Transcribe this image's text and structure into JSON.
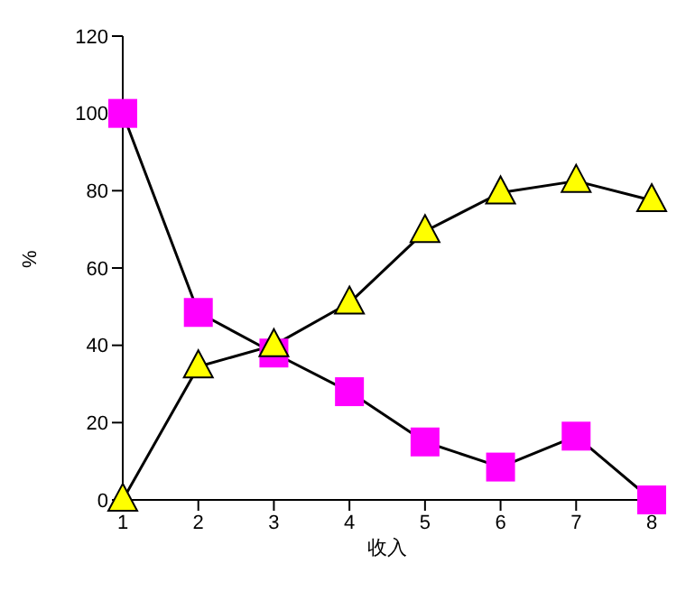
{
  "chart_data": {
    "type": "line",
    "xlabel": "收入",
    "ylabel": "%",
    "x": [
      1,
      2,
      3,
      4,
      5,
      6,
      7,
      8
    ],
    "series": [
      {
        "color": "#ff00ff",
        "marker": "square",
        "values": [
          100,
          48.5,
          38,
          28,
          15,
          8.5,
          16.5,
          0
        ]
      },
      {
        "color": "#ffff00",
        "marker": "triangle",
        "values": [
          0,
          34.5,
          40,
          51,
          69.5,
          79.5,
          82.5,
          77.5
        ]
      }
    ],
    "xlim": [
      1,
      8
    ],
    "xticks": [
      1,
      2,
      3,
      4,
      5,
      6,
      7,
      8
    ],
    "ylim": [
      0,
      120
    ],
    "yticks": [
      0,
      20,
      40,
      60,
      80,
      100,
      120
    ],
    "grid": false,
    "legend": false
  }
}
